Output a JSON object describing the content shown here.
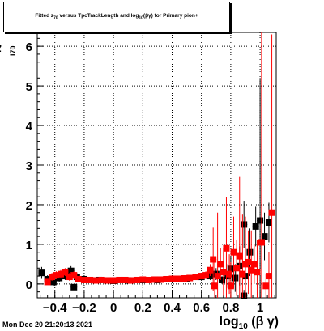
{
  "header": {
    "title_pre": "Fitted  z",
    "title_sub1": "70",
    "title_mid": "  versus TpcTrackLength and log",
    "title_sub2": "10",
    "title_post": "(βγ) for Primary pion+"
  },
  "axes": {
    "ylabel_main": "z",
    "ylabel_sub": "I70",
    "xlabel_main": "log",
    "xlabel_sub": "10",
    "xlabel_post": "(β γ)"
  },
  "footer": {
    "timestamp": "Mon Dec 20 21:20:13 2021"
  },
  "chart_data": {
    "type": "scatter",
    "title": "Fitted z_I70 versus TpcTrackLength and log10(βγ) for Primary pion+",
    "xlabel": "log10(β γ)",
    "ylabel": "z_I70",
    "xlim": [
      -0.52,
      1.11
    ],
    "ylim": [
      -0.35,
      6.35
    ],
    "xticks": [
      -0.4,
      -0.2,
      0,
      0.2,
      0.4,
      0.6,
      0.8,
      1
    ],
    "xtick_labels": [
      "−0.4",
      "−0.2",
      "0",
      "0.2",
      "0.4",
      "0.6",
      "0.8",
      "1"
    ],
    "yticks": [
      0,
      1,
      2,
      3,
      4,
      5,
      6
    ],
    "ytick_labels": [
      "0",
      "1",
      "2",
      "3",
      "4",
      "5",
      "6"
    ],
    "grid": true,
    "series": [
      {
        "color": "#000000",
        "marker": "square",
        "points": [
          {
            "x": -0.49,
            "y": 0.28,
            "err": 0.15
          },
          {
            "x": -0.45,
            "y": 0.12,
            "err": 0.1
          },
          {
            "x": -0.41,
            "y": 0.05,
            "err": 0.1
          },
          {
            "x": -0.37,
            "y": 0.15,
            "err": 0.1
          },
          {
            "x": -0.33,
            "y": 0.2,
            "err": 0.1
          },
          {
            "x": -0.29,
            "y": 0.33,
            "err": 0.12
          },
          {
            "x": -0.25,
            "y": 0.18,
            "err": 0.1
          },
          {
            "x": -0.27,
            "y": -0.08,
            "err": 0.06
          },
          {
            "x": -0.2,
            "y": 0.12,
            "err": 0.05
          },
          {
            "x": -0.1,
            "y": 0.1,
            "err": 0.04
          },
          {
            "x": 0.0,
            "y": 0.08,
            "err": 0.03
          },
          {
            "x": 0.1,
            "y": 0.09,
            "err": 0.03
          },
          {
            "x": 0.2,
            "y": 0.1,
            "err": 0.03
          },
          {
            "x": 0.3,
            "y": 0.1,
            "err": 0.03
          },
          {
            "x": 0.4,
            "y": 0.12,
            "err": 0.03
          },
          {
            "x": 0.5,
            "y": 0.14,
            "err": 0.04
          },
          {
            "x": 0.6,
            "y": 0.18,
            "err": 0.05
          },
          {
            "x": 0.66,
            "y": 0.2,
            "err": 0.1
          },
          {
            "x": 0.7,
            "y": 0.25,
            "err": 0.15
          },
          {
            "x": 0.74,
            "y": 0.1,
            "err": 0.1
          },
          {
            "x": 0.78,
            "y": 0.2,
            "err": 0.3
          },
          {
            "x": 0.8,
            "y": 0.38,
            "err": 0.3
          },
          {
            "x": 0.83,
            "y": 0.15,
            "err": 0.35
          },
          {
            "x": 0.86,
            "y": 0.45,
            "err": 0.5
          },
          {
            "x": 0.89,
            "y": 1.5,
            "err": 0.6
          },
          {
            "x": 0.9,
            "y": 0.2,
            "err": 0.4
          },
          {
            "x": 0.89,
            "y": -0.3,
            "err": 0.15
          },
          {
            "x": 0.93,
            "y": 0.8,
            "err": 0.6
          },
          {
            "x": 0.97,
            "y": 1.45,
            "err": 0.5
          },
          {
            "x": 1.0,
            "y": 1.6,
            "err": 3.6
          },
          {
            "x": 1.03,
            "y": 1.2,
            "err": 0.6
          },
          {
            "x": 1.06,
            "y": 1.55,
            "err": 0.5
          }
        ]
      },
      {
        "color": "#ff0000",
        "marker": "square",
        "points": [
          {
            "x": -0.45,
            "y": 0.05,
            "err": 0.05
          },
          {
            "x": -0.42,
            "y": 0.18,
            "err": 0.1
          },
          {
            "x": -0.39,
            "y": 0.22,
            "err": 0.1
          },
          {
            "x": -0.36,
            "y": 0.25,
            "err": 0.1
          },
          {
            "x": -0.33,
            "y": 0.3,
            "err": 0.1
          },
          {
            "x": -0.3,
            "y": 0.18,
            "err": 0.1
          },
          {
            "x": -0.27,
            "y": 0.22,
            "err": 0.1
          },
          {
            "x": -0.24,
            "y": 0.12,
            "err": 0.05
          },
          {
            "x": -0.2,
            "y": 0.1,
            "err": 0.04
          },
          {
            "x": -0.16,
            "y": 0.1,
            "err": 0.04
          },
          {
            "x": -0.12,
            "y": 0.09,
            "err": 0.04
          },
          {
            "x": -0.08,
            "y": 0.1,
            "err": 0.04
          },
          {
            "x": -0.04,
            "y": 0.09,
            "err": 0.04
          },
          {
            "x": 0.0,
            "y": 0.09,
            "err": 0.04
          },
          {
            "x": 0.04,
            "y": 0.1,
            "err": 0.04
          },
          {
            "x": 0.08,
            "y": 0.1,
            "err": 0.04
          },
          {
            "x": 0.12,
            "y": 0.09,
            "err": 0.04
          },
          {
            "x": 0.16,
            "y": 0.1,
            "err": 0.04
          },
          {
            "x": 0.2,
            "y": 0.11,
            "err": 0.04
          },
          {
            "x": 0.24,
            "y": 0.1,
            "err": 0.04
          },
          {
            "x": 0.28,
            "y": 0.11,
            "err": 0.04
          },
          {
            "x": 0.32,
            "y": 0.11,
            "err": 0.04
          },
          {
            "x": 0.36,
            "y": 0.12,
            "err": 0.04
          },
          {
            "x": 0.4,
            "y": 0.13,
            "err": 0.04
          },
          {
            "x": 0.44,
            "y": 0.13,
            "err": 0.04
          },
          {
            "x": 0.48,
            "y": 0.14,
            "err": 0.05
          },
          {
            "x": 0.52,
            "y": 0.15,
            "err": 0.05
          },
          {
            "x": 0.56,
            "y": 0.18,
            "err": 0.05
          },
          {
            "x": 0.6,
            "y": 0.2,
            "err": 0.06
          },
          {
            "x": 0.63,
            "y": 0.22,
            "err": 0.1
          },
          {
            "x": 0.66,
            "y": 0.35,
            "err": 0.15
          },
          {
            "x": 0.68,
            "y": 0.62,
            "err": 0.8
          },
          {
            "x": 0.69,
            "y": -0.05,
            "err": 0.6
          },
          {
            "x": 0.71,
            "y": 0.2,
            "err": 1.6
          },
          {
            "x": 0.73,
            "y": 0.5,
            "err": 0.4
          },
          {
            "x": 0.75,
            "y": 0.3,
            "err": 0.6
          },
          {
            "x": 0.77,
            "y": 0.9,
            "err": 1.3
          },
          {
            "x": 0.79,
            "y": 0.25,
            "err": 0.5
          },
          {
            "x": 0.8,
            "y": -0.05,
            "err": 0.6
          },
          {
            "x": 0.82,
            "y": 0.8,
            "err": 0.9
          },
          {
            "x": 0.84,
            "y": 0.4,
            "err": 0.7
          },
          {
            "x": 0.86,
            "y": 0.7,
            "err": 2.0
          },
          {
            "x": 0.88,
            "y": 0.25,
            "err": 1.5
          },
          {
            "x": 0.9,
            "y": 0.5,
            "err": 1.2
          },
          {
            "x": 0.92,
            "y": 0.55,
            "err": 0.8
          },
          {
            "x": 0.94,
            "y": 0.35,
            "err": 1.0
          },
          {
            "x": 0.96,
            "y": 0.5,
            "err": 0.5
          },
          {
            "x": 0.98,
            "y": 0.3,
            "err": 0.8
          },
          {
            "x": 1.01,
            "y": 1.05,
            "err": 5.3
          },
          {
            "x": 1.04,
            "y": -0.05,
            "err": 0.3
          },
          {
            "x": 1.06,
            "y": 0.2,
            "err": 0.6
          },
          {
            "x": 1.08,
            "y": 1.8,
            "err": 4.5
          }
        ]
      }
    ]
  }
}
